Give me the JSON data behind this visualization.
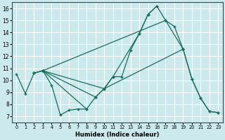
{
  "xlabel": "Humidex (Indice chaleur)",
  "xlim": [
    -0.5,
    23.5
  ],
  "ylim": [
    6.5,
    16.5
  ],
  "xticks": [
    0,
    1,
    2,
    3,
    4,
    5,
    6,
    7,
    8,
    9,
    10,
    11,
    12,
    13,
    14,
    15,
    16,
    17,
    18,
    19,
    20,
    21,
    22,
    23
  ],
  "yticks": [
    7,
    8,
    9,
    10,
    11,
    12,
    13,
    14,
    15,
    16
  ],
  "bg_color": "#cce9ee",
  "line_color": "#1a6b5a",
  "grid_color": "#ffffff",
  "lines": [
    {
      "x": [
        0,
        1,
        2,
        3,
        4,
        5,
        6,
        7,
        8
      ],
      "y": [
        10.5,
        8.9,
        10.6,
        10.8,
        9.6,
        7.1,
        7.5,
        7.6,
        7.6
      ]
    },
    {
      "x": [
        2,
        3,
        10,
        11,
        14,
        15,
        16
      ],
      "y": [
        10.6,
        10.8,
        9.3,
        10.3,
        13.9,
        15.5,
        16.2
      ]
    },
    {
      "x": [
        2,
        3,
        9,
        10,
        11,
        12,
        13,
        14,
        15,
        16,
        17,
        19
      ],
      "y": [
        10.6,
        10.8,
        8.6,
        9.3,
        10.3,
        10.3,
        12.5,
        13.9,
        15.5,
        16.2,
        15.0,
        12.6
      ]
    },
    {
      "x": [
        3,
        8,
        9,
        10,
        19,
        20,
        21,
        22,
        23
      ],
      "y": [
        10.8,
        7.6,
        8.6,
        9.3,
        12.6,
        10.1,
        8.5,
        7.4,
        7.3
      ]
    },
    {
      "x": [
        3,
        17,
        18,
        19,
        20,
        21,
        22,
        23
      ],
      "y": [
        10.8,
        15.0,
        14.5,
        12.6,
        10.1,
        8.5,
        7.4,
        7.3
      ]
    }
  ]
}
